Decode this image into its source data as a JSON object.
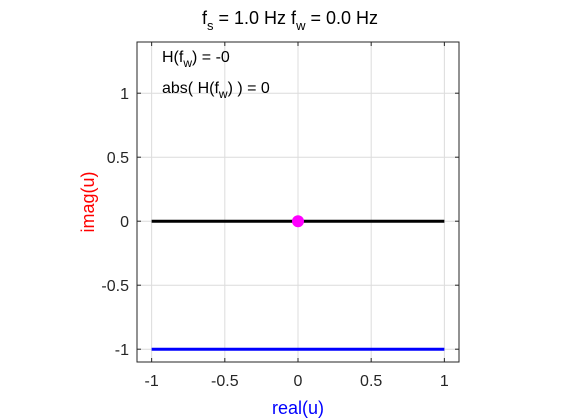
{
  "title": {
    "parts": [
      {
        "text": "f",
        "sub": "s",
        "rest": " = 1.0  Hz"
      },
      {
        "text": "f",
        "sub": "w",
        "rest": " = 0.0  Hz"
      }
    ]
  },
  "annotations": [
    {
      "pre": "H(f",
      "sub": "w",
      "post": ")  =  -0"
    },
    {
      "pre": "abs( H(f",
      "sub": "w",
      "post": ") )  =  0"
    }
  ],
  "colors": {
    "xlabel": "#0000ff",
    "ylabel": "#ff0000",
    "line": "#000000",
    "bottom_line": "#0000ff",
    "marker": "#ff00ff",
    "grid": "#dcdcdc",
    "axes": "#262626"
  },
  "chart_data": {
    "type": "line",
    "xlabel": "real(u)",
    "ylabel": "imag(u)",
    "xlim": [
      -1.1,
      1.1
    ],
    "ylim": [
      -1.1,
      1.4
    ],
    "xticks": [
      -1,
      -0.5,
      0,
      0.5,
      1
    ],
    "xtick_labels": [
      "-1",
      "-0.5",
      "0",
      "0.5",
      "1"
    ],
    "yticks": [
      -1,
      -0.5,
      0,
      0.5,
      1
    ],
    "ytick_labels": [
      "-1",
      "-0.5",
      "0",
      "0.5",
      "1"
    ],
    "grid": true,
    "series": [
      {
        "x": [
          -1,
          1
        ],
        "y": [
          0,
          0
        ],
        "color": "#000000"
      },
      {
        "x": [
          -1,
          1
        ],
        "y": [
          -1,
          -1
        ],
        "color": "#0000ff"
      }
    ],
    "points": [
      {
        "x": 0,
        "y": 0,
        "color": "#ff00ff"
      }
    ]
  }
}
